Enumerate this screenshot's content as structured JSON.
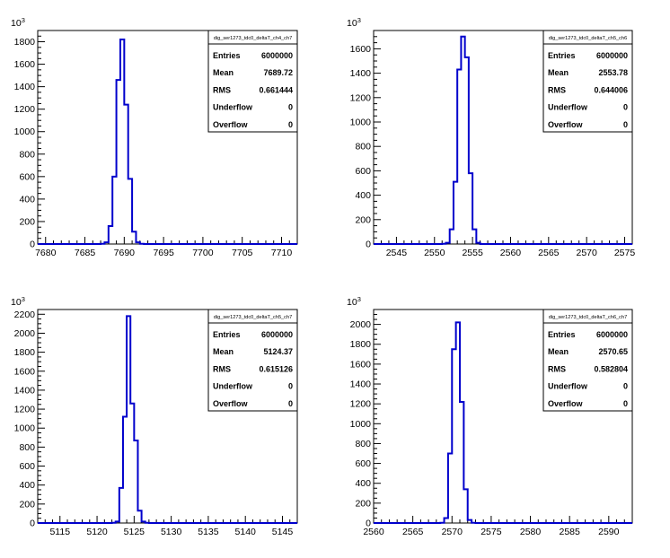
{
  "chart_data": [
    {
      "type": "histogram",
      "title": "",
      "xlabel": "",
      "ylabel": "",
      "y_multiplier_label": "10",
      "y_multiplier_exp": "3",
      "xlim": [
        7679,
        7712
      ],
      "ylim": [
        0,
        1900
      ],
      "x_ticks": [
        7680,
        7685,
        7690,
        7695,
        7700,
        7705,
        7710
      ],
      "y_ticks": [
        0,
        200,
        400,
        600,
        800,
        1000,
        1200,
        1400,
        1600,
        1800
      ],
      "bins": {
        "x": [
          7687.0,
          7687.5,
          7688.0,
          7688.5,
          7689.0,
          7689.5,
          7690.0,
          7690.5,
          7691.0,
          7691.5,
          7692.0
        ],
        "width": 0.5,
        "values": [
          2,
          15,
          160,
          600,
          1460,
          1820,
          1240,
          580,
          110,
          15,
          2
        ]
      },
      "stats": {
        "name": "dig_ser1273_tdc0_deltaT_ch4_ch7",
        "rows": [
          {
            "label": "Entries",
            "value": "6000000"
          },
          {
            "label": "Mean",
            "value": "7689.72"
          },
          {
            "label": "RMS",
            "value": "0.661444"
          },
          {
            "label": "Underflow",
            "value": "0"
          },
          {
            "label": "Overflow",
            "value": "0"
          }
        ]
      }
    },
    {
      "type": "histogram",
      "title": "",
      "xlabel": "",
      "ylabel": "",
      "y_multiplier_label": "10",
      "y_multiplier_exp": "3",
      "xlim": [
        2542,
        2576
      ],
      "ylim": [
        0,
        1750
      ],
      "x_ticks": [
        2545,
        2550,
        2555,
        2560,
        2565,
        2570,
        2575
      ],
      "y_ticks": [
        0,
        200,
        400,
        600,
        800,
        1000,
        1200,
        1400,
        1600
      ],
      "bins": {
        "x": [
          2551.0,
          2551.5,
          2552.0,
          2552.5,
          2553.0,
          2553.5,
          2554.0,
          2554.5,
          2555.0,
          2555.5
        ],
        "width": 0.5,
        "values": [
          2,
          10,
          120,
          510,
          1430,
          1700,
          1530,
          580,
          120,
          10
        ]
      },
      "stats": {
        "name": "dig_ser1273_tdc0_deltaT_ch5_ch6",
        "rows": [
          {
            "label": "Entries",
            "value": "6000000"
          },
          {
            "label": "Mean",
            "value": "2553.78"
          },
          {
            "label": "RMS",
            "value": "0.644006"
          },
          {
            "label": "Underflow",
            "value": "0"
          },
          {
            "label": "Overflow",
            "value": "0"
          }
        ]
      }
    },
    {
      "type": "histogram",
      "title": "",
      "xlabel": "",
      "ylabel": "",
      "y_multiplier_label": "10",
      "y_multiplier_exp": "3",
      "xlim": [
        5112,
        5147
      ],
      "ylim": [
        0,
        2250
      ],
      "x_ticks": [
        5115,
        5120,
        5125,
        5130,
        5135,
        5140,
        5145
      ],
      "y_ticks": [
        0,
        200,
        400,
        600,
        800,
        1000,
        1200,
        1400,
        1600,
        1800,
        2000,
        2200
      ],
      "bins": {
        "x": [
          5122.0,
          5122.5,
          5123.0,
          5123.5,
          5124.0,
          5124.5,
          5125.0,
          5125.5,
          5126.0,
          5126.5
        ],
        "width": 0.5,
        "values": [
          2,
          15,
          370,
          1120,
          2180,
          1260,
          870,
          130,
          15,
          2
        ]
      },
      "stats": {
        "name": "dig_ser1273_tdc0_deltaT_ch5_ch7",
        "rows": [
          {
            "label": "Entries",
            "value": "6000000"
          },
          {
            "label": "Mean",
            "value": "5124.37"
          },
          {
            "label": "RMS",
            "value": "0.615126"
          },
          {
            "label": "Underflow",
            "value": "0"
          },
          {
            "label": "Overflow",
            "value": "0"
          }
        ]
      }
    },
    {
      "type": "histogram",
      "title": "",
      "xlabel": "",
      "ylabel": "",
      "y_multiplier_label": "10",
      "y_multiplier_exp": "3",
      "xlim": [
        2560,
        2593
      ],
      "ylim": [
        0,
        2150
      ],
      "x_ticks": [
        2560,
        2565,
        2570,
        2575,
        2580,
        2585,
        2590
      ],
      "y_ticks": [
        0,
        200,
        400,
        600,
        800,
        1000,
        1200,
        1400,
        1600,
        1800,
        2000
      ],
      "bins": {
        "x": [
          2568.5,
          2569.0,
          2569.5,
          2570.0,
          2570.5,
          2571.0,
          2571.5,
          2572.0,
          2572.5
        ],
        "width": 0.5,
        "values": [
          2,
          50,
          700,
          1750,
          2020,
          1220,
          340,
          30,
          2
        ]
      },
      "stats": {
        "name": "dig_ser1273_tdc0_deltaT_ch6_ch7",
        "rows": [
          {
            "label": "Entries",
            "value": "6000000"
          },
          {
            "label": "Mean",
            "value": "2570.65"
          },
          {
            "label": "RMS",
            "value": "0.582804"
          },
          {
            "label": "Underflow",
            "value": "0"
          },
          {
            "label": "Overflow",
            "value": "0"
          }
        ]
      }
    }
  ]
}
